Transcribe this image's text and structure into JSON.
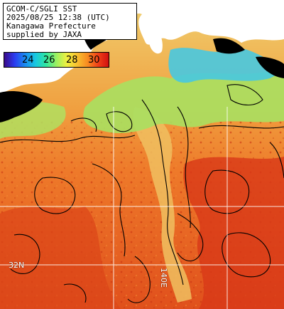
{
  "caption": {
    "line1": "GCOM-C/SGLI SST",
    "line2": "2025/08/25 12:38 (UTC)",
    "line3": "Kanagawa Prefecture",
    "line4": "supplied by JAXA"
  },
  "legend": {
    "unit_hint": "SST color scale",
    "labels": [
      "24",
      "26",
      "28",
      "30"
    ]
  },
  "grid": {
    "lat_label": "32N",
    "lon_label": "140E"
  },
  "colors": {
    "land": "#ffffff",
    "cloud": "#000000",
    "warm": "#e8501a",
    "hot": "#d83018",
    "mid": "#f0a040",
    "cool": "#98e060",
    "cold": "#40c0e0",
    "contour": "#000000",
    "grid": "#ffffff"
  }
}
